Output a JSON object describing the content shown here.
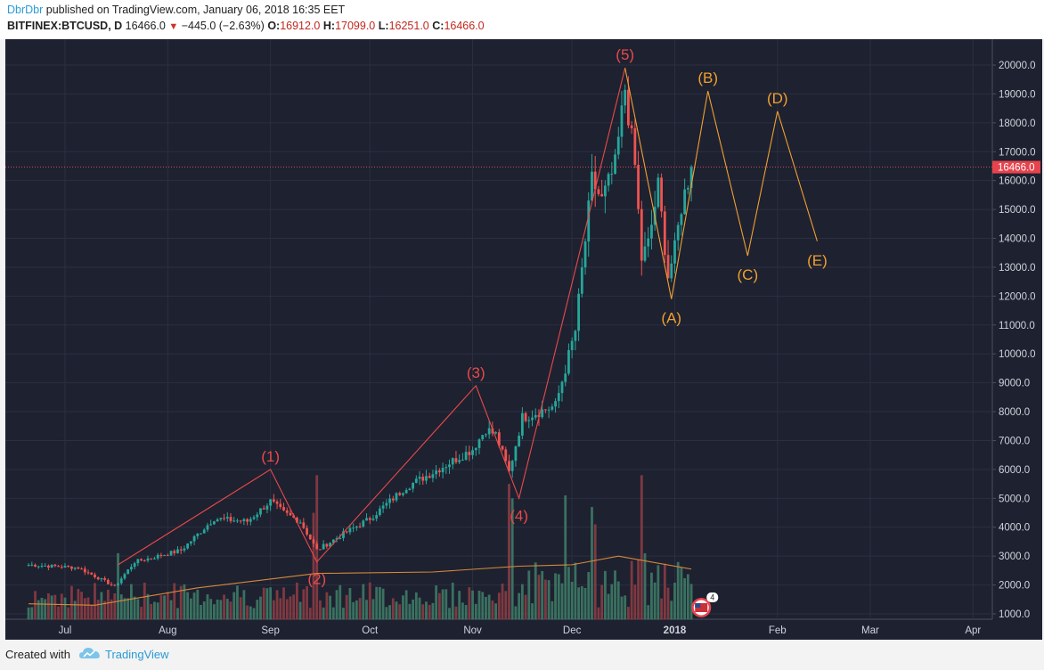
{
  "header": {
    "author": "DbrDbr",
    "published": "published on TradingView.com, January 06, 2018 16:35 EET",
    "symbol": "BITFINEX:BTCUSD, D",
    "last": "16466.0",
    "change": "−445.0 (−2.63%)",
    "o_label": "O:",
    "o_value": "16912.0",
    "h_label": "H:",
    "h_value": "17099.0",
    "l_label": "L:",
    "l_value": "16251.0",
    "c_label": "C:",
    "c_value": "16466.0"
  },
  "footer": {
    "created_with": "Created with",
    "brand": "TradingView"
  },
  "colors": {
    "background": "#1e2130",
    "up": "#26a69a",
    "down": "#ef5350",
    "wave_red": "#e84a4a",
    "wave_orange": "#f0a030",
    "ma": "#d58a3a"
  },
  "chart_data": {
    "type": "candlestick",
    "x_ticks": [
      "Jul",
      "Aug",
      "Sep",
      "Oct",
      "Nov",
      "Dec",
      "2018",
      "Feb",
      "Mar",
      "Apr"
    ],
    "y_ticks": [
      "1000.0",
      "2000.0",
      "3000.0",
      "4000.0",
      "5000.0",
      "6000.0",
      "7000.0",
      "8000.0",
      "9000.0",
      "10000.0",
      "11000.0",
      "12000.0",
      "13000.0",
      "14000.0",
      "15000.0",
      "16000.0",
      "17000.0",
      "18000.0",
      "19000.0",
      "20000.0"
    ],
    "ylim": [
      800,
      21000
    ],
    "last_price_label": "16466.0",
    "price_path": [
      [
        "2017-06-20",
        2700
      ],
      [
        "2017-07-05",
        2600
      ],
      [
        "2017-07-16",
        1950
      ],
      [
        "2017-07-22",
        2800
      ],
      [
        "2017-08-05",
        3200
      ],
      [
        "2017-08-15",
        4300
      ],
      [
        "2017-08-25",
        4200
      ],
      [
        "2017-09-01",
        4900
      ],
      [
        "2017-09-05",
        4500
      ],
      [
        "2017-09-10",
        4200
      ],
      [
        "2017-09-15",
        3200
      ],
      [
        "2017-09-22",
        3700
      ],
      [
        "2017-10-01",
        4300
      ],
      [
        "2017-10-12",
        5400
      ],
      [
        "2017-10-20",
        5900
      ],
      [
        "2017-11-01",
        6700
      ],
      [
        "2017-11-05",
        7400
      ],
      [
        "2017-11-08",
        7200
      ],
      [
        "2017-11-12",
        5900
      ],
      [
        "2017-11-16",
        7800
      ],
      [
        "2017-11-26",
        8200
      ],
      [
        "2017-12-02",
        10800
      ],
      [
        "2017-12-07",
        16000
      ],
      [
        "2017-12-10",
        15300
      ],
      [
        "2017-12-14",
        16500
      ],
      [
        "2017-12-17",
        19200
      ],
      [
        "2017-12-20",
        16500
      ],
      [
        "2017-12-22",
        13300
      ],
      [
        "2017-12-24",
        13800
      ],
      [
        "2017-12-27",
        15800
      ],
      [
        "2017-12-30",
        12700
      ],
      [
        "2018-01-01",
        13600
      ],
      [
        "2018-01-03",
        15100
      ],
      [
        "2018-01-06",
        16466
      ]
    ],
    "moving_average": [
      [
        "2017-06-20",
        1350
      ],
      [
        "2017-07-10",
        1300
      ],
      [
        "2017-08-10",
        1900
      ],
      [
        "2017-09-15",
        2400
      ],
      [
        "2017-10-20",
        2450
      ],
      [
        "2017-11-15",
        2650
      ],
      [
        "2017-12-01",
        2700
      ],
      [
        "2017-12-15",
        3000
      ],
      [
        "2018-01-06",
        2550
      ]
    ],
    "volume_spikes": [
      [
        "2017-07-17",
        3100
      ],
      [
        "2017-09-14",
        4500
      ],
      [
        "2017-09-15",
        5800
      ],
      [
        "2017-11-12",
        5500
      ],
      [
        "2017-11-13",
        5000
      ],
      [
        "2017-11-29",
        5100
      ],
      [
        "2017-12-07",
        4700
      ],
      [
        "2017-12-08",
        4100
      ],
      [
        "2017-12-22",
        5800
      ],
      [
        "2017-12-23",
        3100
      ]
    ],
    "wave_annotations_red": [
      {
        "label": "(1)",
        "date": "2017-09-01",
        "price": 6000
      },
      {
        "label": "(2)",
        "date": "2017-09-15",
        "price": 2800
      },
      {
        "label": "(3)",
        "date": "2017-11-02",
        "price": 8900
      },
      {
        "label": "(4)",
        "date": "2017-11-15",
        "price": 5000
      },
      {
        "label": "(5)",
        "date": "2017-12-17",
        "price": 19900
      }
    ],
    "wave_start": {
      "date": "2017-07-17",
      "price": 2700
    },
    "wave_annotations_orange": [
      {
        "label": "(A)",
        "date": "2017-12-31",
        "price": 11900
      },
      {
        "label": "(B)",
        "date": "2018-01-11",
        "price": 19100
      },
      {
        "label": "(C)",
        "date": "2018-01-23",
        "price": 13400
      },
      {
        "label": "(D)",
        "date": "2018-02-01",
        "price": 18400
      },
      {
        "label": "(E)",
        "date": "2018-02-13",
        "price": 13900
      }
    ],
    "flag_badge": "4"
  }
}
